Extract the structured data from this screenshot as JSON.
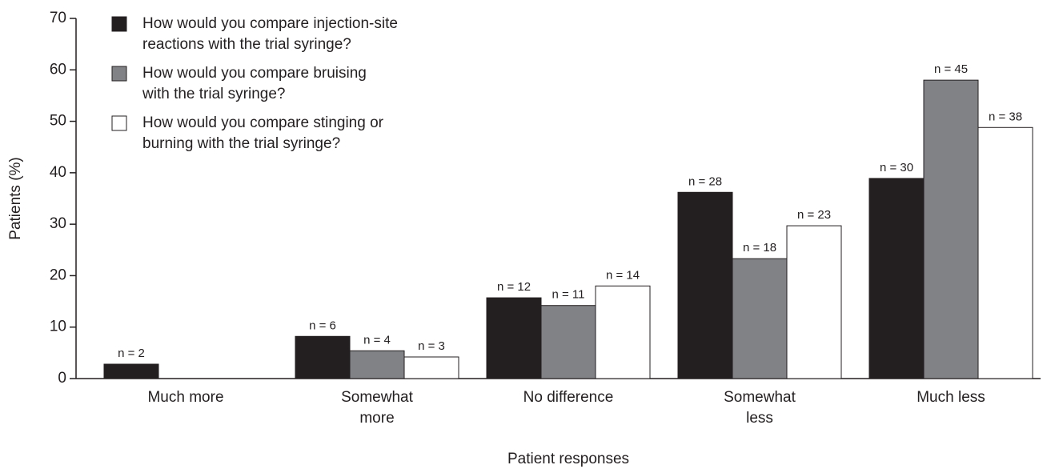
{
  "chart_data": {
    "type": "bar",
    "x_label": "Patient responses",
    "y_label": "Patients (%)",
    "categories": [
      "Much more",
      "Somewhat\nmore",
      "No difference",
      "Somewhat\nless",
      "Much less"
    ],
    "series": [
      {
        "name": "How would you compare injection-site\nreactions with the trial syringe?",
        "color": "#231f20",
        "values": [
          2.8,
          8.2,
          15.7,
          36.2,
          38.9
        ],
        "labels": [
          "n = 2",
          "n = 6",
          "n = 12",
          "n = 28",
          "n = 30"
        ]
      },
      {
        "name": "How would you compare bruising\nwith the trial syringe?",
        "color": "#808285",
        "values": [
          null,
          5.4,
          14.2,
          23.3,
          58.0
        ],
        "labels": [
          null,
          "n = 4",
          "n = 11",
          "n = 18",
          "n = 45"
        ]
      },
      {
        "name": "How would you compare stinging or\nburning with the trial syringe?",
        "color": "#ffffff",
        "values": [
          null,
          4.2,
          18.0,
          29.7,
          48.8
        ],
        "labels": [
          null,
          "n = 3",
          "n = 14",
          "n = 23",
          "n = 38"
        ]
      }
    ],
    "ylim": [
      0,
      70
    ],
    "yticks": [
      0,
      10,
      20,
      30,
      40,
      50,
      60,
      70
    ],
    "legend": "upper left"
  }
}
